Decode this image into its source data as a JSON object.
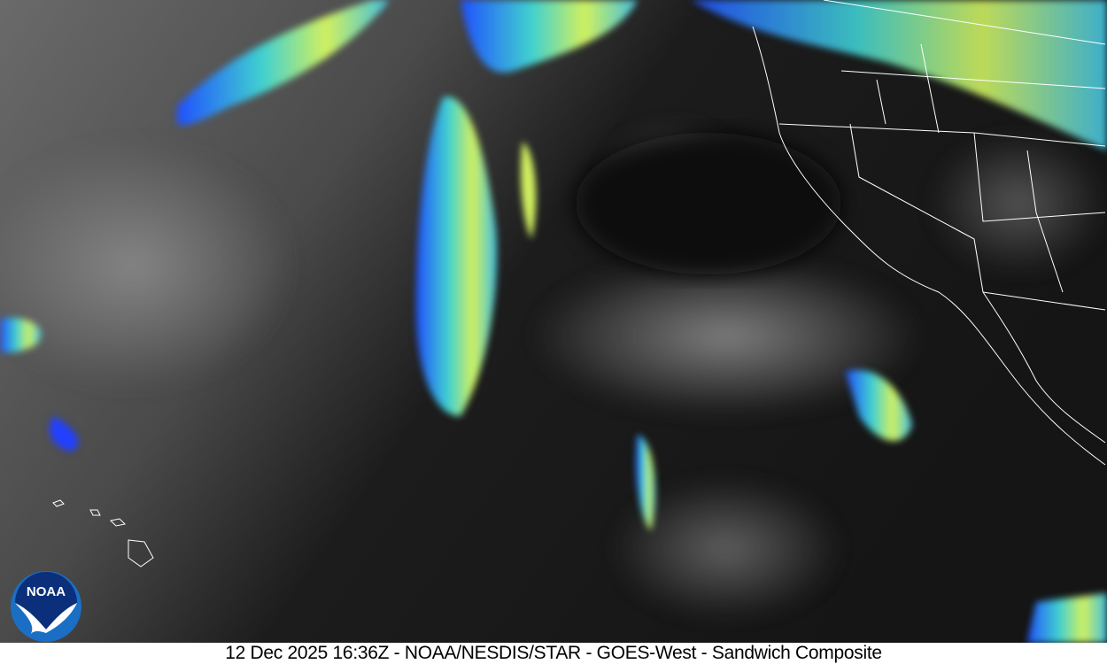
{
  "caption": "12 Dec 2025 16:36Z - NOAA/NESDIS/STAR - GOES-West - Sandwich Composite",
  "caption_parts": {
    "timestamp": "12 Dec 2025 16:36Z",
    "source": "NOAA/NESDIS/STAR",
    "satellite": "GOES-West",
    "product": "Sandwich Composite"
  },
  "logo": {
    "text": "NOAA",
    "colors": {
      "outer": "#1a6fc4",
      "inner": "#0b2f7a",
      "bird": "#ffffff"
    }
  },
  "palette": {
    "cloud_cold_high": "#f0f040",
    "cloud_mid": "#40e0c0",
    "cloud_low": "#2060ff",
    "cloud_edge": "#0010c0",
    "ocean_dark": "#101010",
    "cloud_gray": "#9a9a9a",
    "borders": "#ffffff"
  }
}
